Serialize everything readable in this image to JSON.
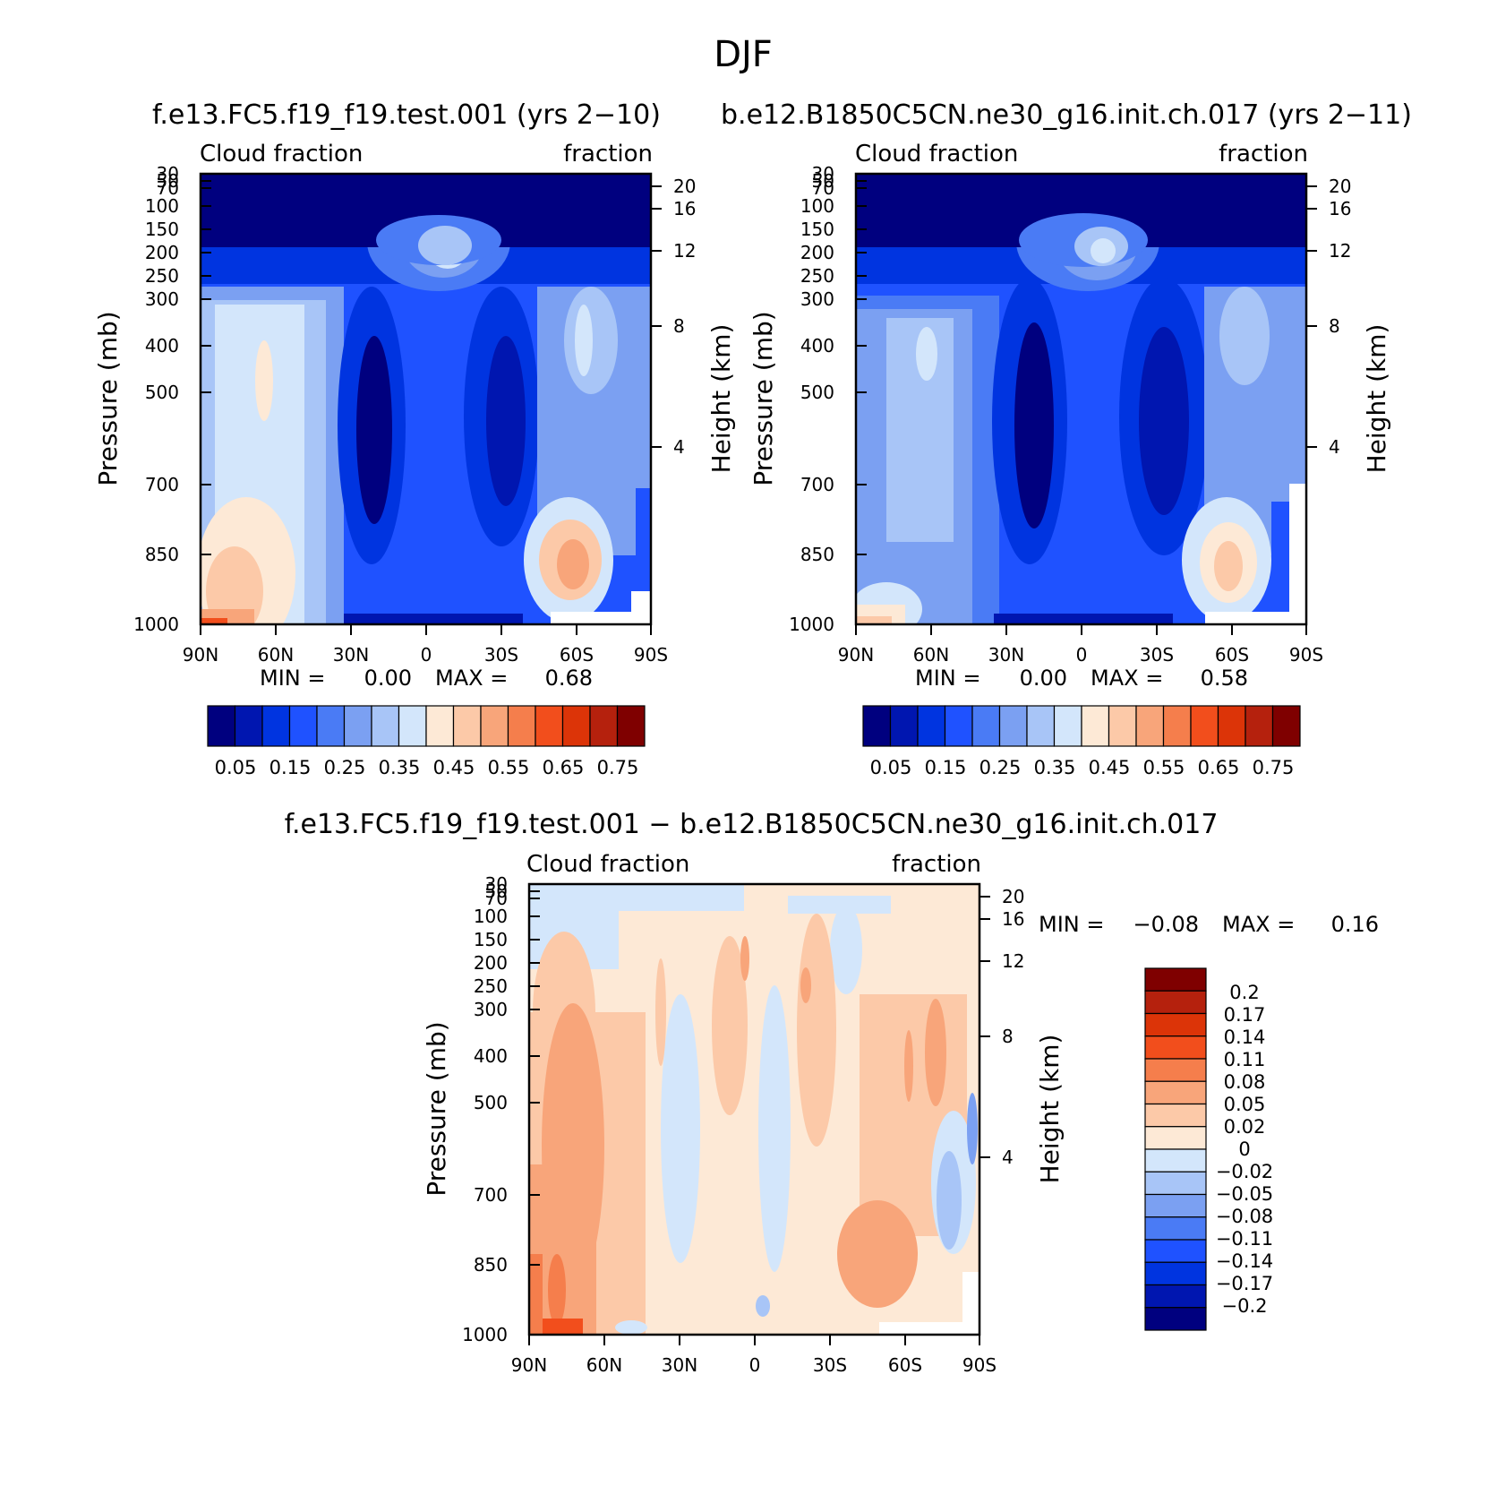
{
  "figure_title": "DJF",
  "panels_header": {
    "left": "f.e13.FC5.f19_f19.test.001 (yrs 2−10)",
    "right": "b.e12.B1850C5CN.ne30_g16.init.ch.017 (yrs 2−11)"
  },
  "diff_title": "f.e13.FC5.f19_f19.test.001 − b.e12.B1850C5CN.ne30_g16.init.ch.017",
  "chart_data": [
    {
      "type": "heatmap",
      "id": "model",
      "left_label": "Cloud fraction",
      "right_label": "fraction",
      "xlabel": "",
      "ylabel": "Pressure (mb)",
      "y2label": "Height (km)",
      "x_ticks": [
        "90N",
        "60N",
        "30N",
        "0",
        "30S",
        "60S",
        "90S"
      ],
      "y_ticks": [
        "30",
        "50",
        "70",
        "100",
        "150",
        "200",
        "250",
        "300",
        "400",
        "500",
        "700",
        "850",
        "1000"
      ],
      "y2_ticks": [
        "20",
        "16",
        "12",
        "8",
        "4"
      ],
      "min_label": "MIN =",
      "min_value": "0.00",
      "max_label": "MAX =",
      "max_value": "0.68",
      "colorbar_labels": [
        "0.05",
        "0.15",
        "0.25",
        "0.35",
        "0.45",
        "0.55",
        "0.65",
        "0.75"
      ]
    },
    {
      "type": "heatmap",
      "id": "control",
      "left_label": "Cloud fraction",
      "right_label": "fraction",
      "xlabel": "",
      "ylabel": "Pressure (mb)",
      "y2label": "Height (km)",
      "x_ticks": [
        "90N",
        "60N",
        "30N",
        "0",
        "30S",
        "60S",
        "90S"
      ],
      "y_ticks": [
        "30",
        "50",
        "70",
        "100",
        "150",
        "200",
        "250",
        "300",
        "400",
        "500",
        "700",
        "850",
        "1000"
      ],
      "y2_ticks": [
        "20",
        "16",
        "12",
        "8",
        "4"
      ],
      "min_label": "MIN =",
      "min_value": "0.00",
      "max_label": "MAX =",
      "max_value": "0.58",
      "colorbar_labels": [
        "0.05",
        "0.15",
        "0.25",
        "0.35",
        "0.45",
        "0.55",
        "0.65",
        "0.75"
      ]
    },
    {
      "type": "heatmap",
      "id": "difference",
      "left_label": "Cloud fraction",
      "right_label": "fraction",
      "xlabel": "",
      "ylabel": "Pressure (mb)",
      "y2label": "Height (km)",
      "x_ticks": [
        "90N",
        "60N",
        "30N",
        "0",
        "30S",
        "60S",
        "90S"
      ],
      "y_ticks": [
        "30",
        "50",
        "70",
        "100",
        "150",
        "200",
        "250",
        "300",
        "400",
        "500",
        "700",
        "850",
        "1000"
      ],
      "y2_ticks": [
        "20",
        "16",
        "12",
        "8",
        "4"
      ],
      "min_label": "MIN =",
      "min_value": "−0.08",
      "max_label": "MAX =",
      "max_value": "0.16",
      "colorbar_labels": [
        "0.2",
        "0.17",
        "0.14",
        "0.11",
        "0.08",
        "0.05",
        "0.02",
        "0",
        "−0.02",
        "−0.05",
        "−0.08",
        "−0.11",
        "−0.14",
        "−0.17",
        "−0.2"
      ]
    }
  ],
  "colors": {
    "abs_scale": [
      "#00007f",
      "#0016b0",
      "#0034e0",
      "#1f52ff",
      "#4a7bf5",
      "#7ba0f2",
      "#a8c5f7",
      "#d3e6fb",
      "#fde9d6",
      "#fcc9a8",
      "#f8a57a",
      "#f57e4c",
      "#f24e1c",
      "#dc3408",
      "#b5210d",
      "#7f0000"
    ],
    "diff_scale": [
      "#00007f",
      "#0016b0",
      "#0034e0",
      "#1f52ff",
      "#4a7bf5",
      "#7ba0f2",
      "#a8c5f7",
      "#d3e6fb",
      "#fde9d6",
      "#fcc9a8",
      "#f8a57a",
      "#f57e4c",
      "#f24e1c",
      "#dc3408",
      "#b5210d",
      "#7f0000"
    ]
  }
}
